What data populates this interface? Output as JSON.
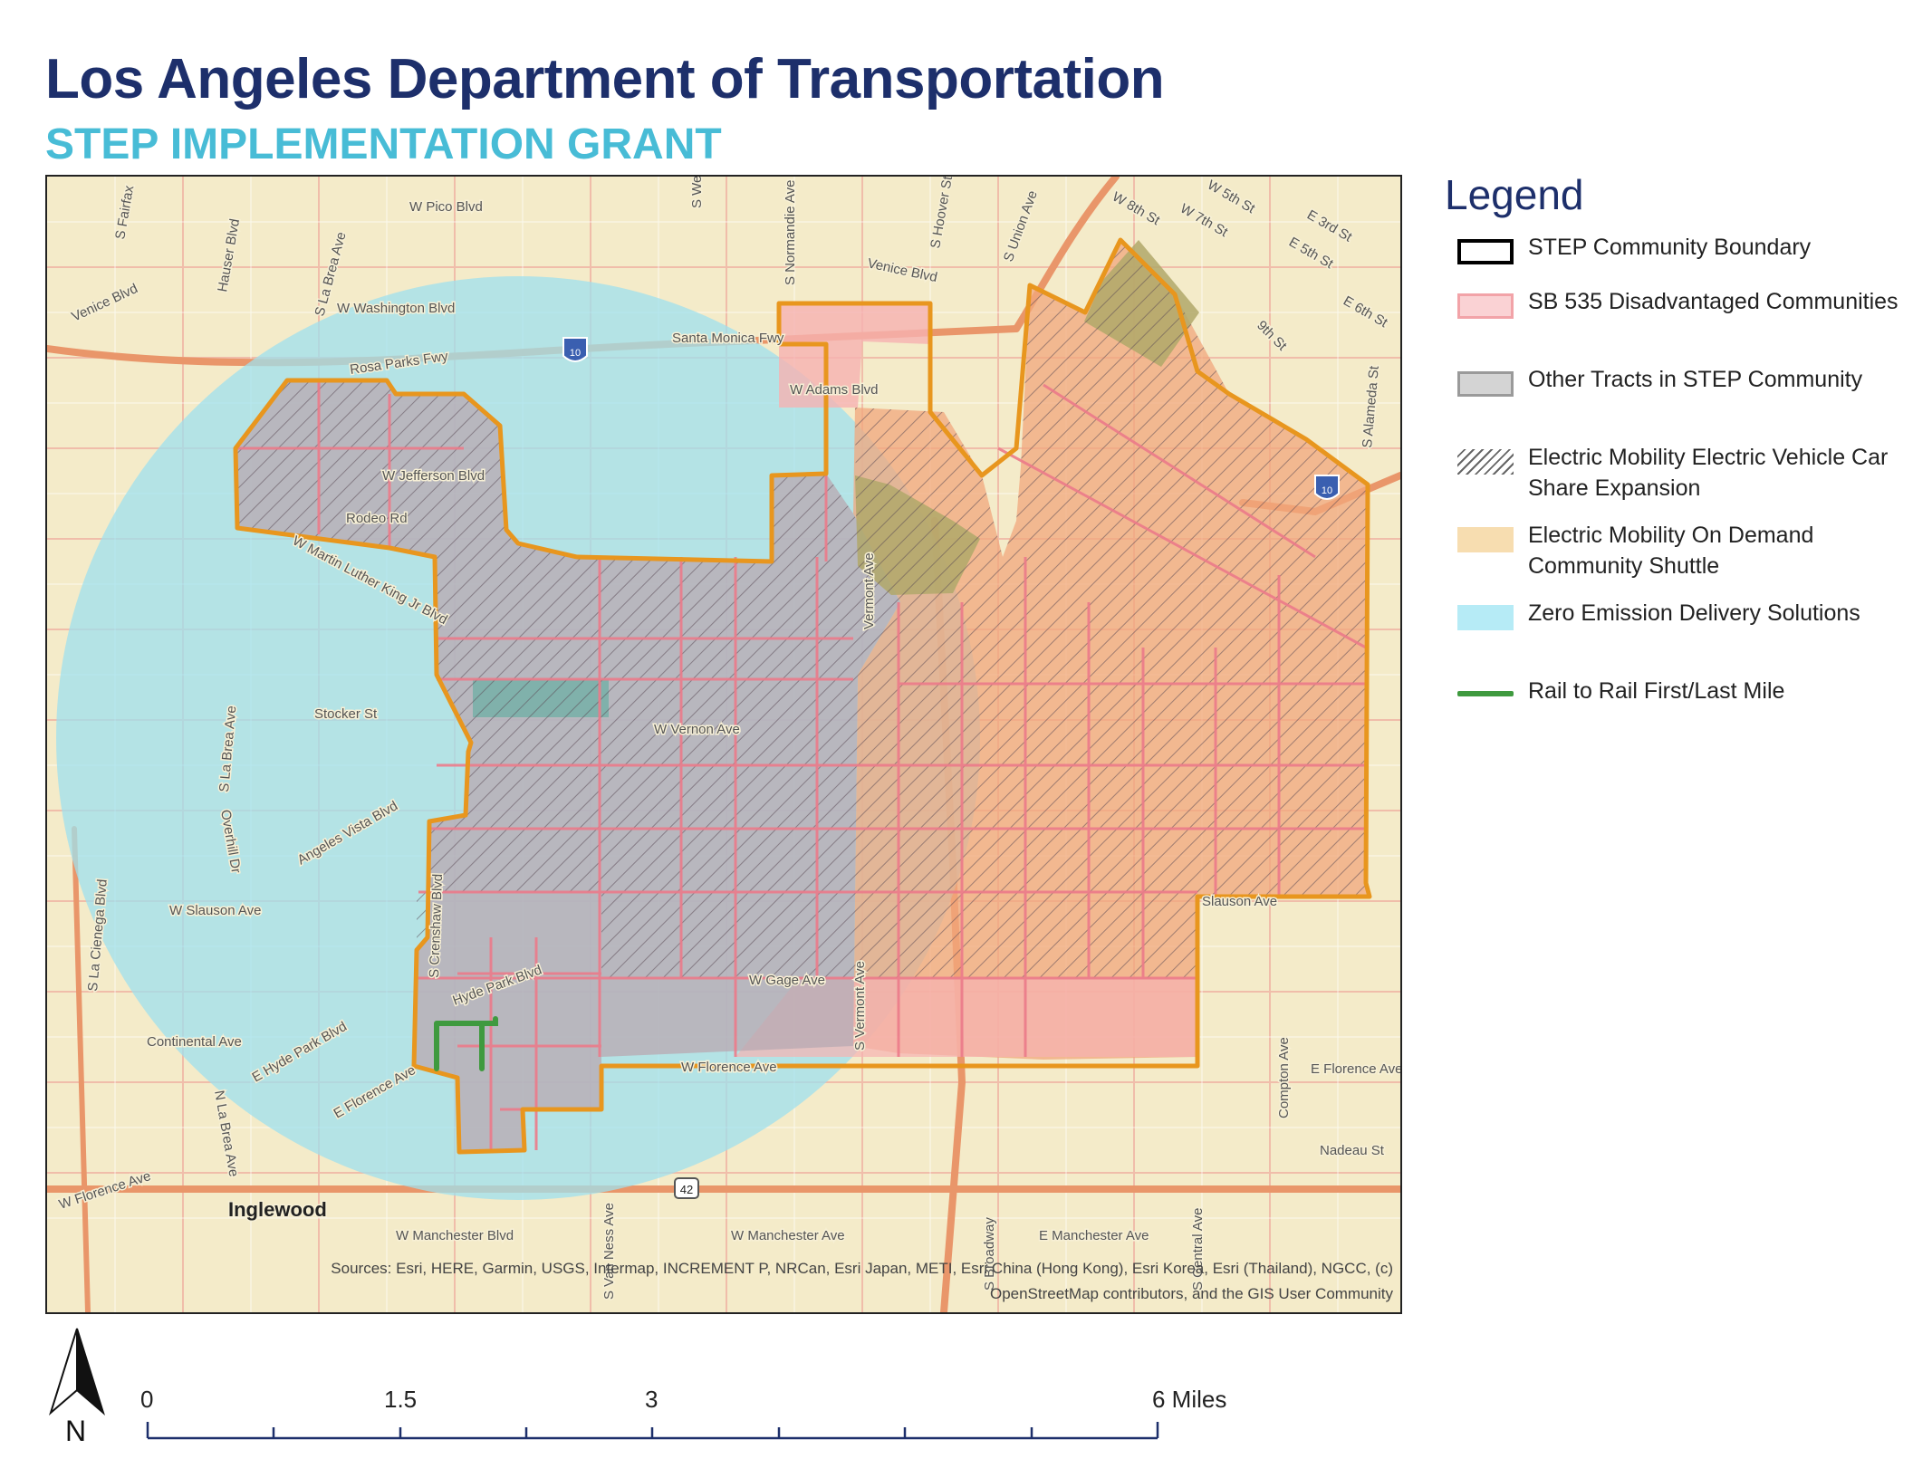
{
  "header": {
    "title": "Los Angeles Department of Transportation",
    "subtitle": "STEP IMPLEMENTATION GRANT"
  },
  "legend": {
    "title": "Legend",
    "items": [
      {
        "label": "STEP Community Boundary",
        "symbol": "boundary-outline"
      },
      {
        "label": "SB 535 Disadvantaged Communities",
        "symbol": "pink-fill"
      },
      {
        "label": "Other Tracts in STEP Community",
        "symbol": "gray-fill"
      },
      {
        "label": "Electric Mobility Electric Vehicle Car Share Expansion",
        "symbol": "diagonal-hatch"
      },
      {
        "label": "Electric Mobility On Demand Community Shuttle",
        "symbol": "orange-fill"
      },
      {
        "label": "Zero Emission Delivery Solutions",
        "symbol": "light-blue-fill"
      },
      {
        "label": "Rail to Rail First/Last Mile",
        "symbol": "green-line"
      }
    ]
  },
  "colors": {
    "title": "#1d2f6b",
    "subtitle": "#48bcd6",
    "basemap": "#f4ebc9",
    "boundary": "#e8961e",
    "sb535": "#f29aa0",
    "other_tracts": "#b8aab4",
    "shuttle": "#f2a77c",
    "zero_emission": "#9fe0ee",
    "rail": "#3f9a3f",
    "highway": "#e9966a"
  },
  "map": {
    "street_labels": [
      "S Fairfax",
      "W Pico Blvd",
      "Venice Blvd",
      "Hauser Blvd",
      "S La Brea Ave",
      "W Washington Blvd",
      "Santa Monica Fwy",
      "Rosa Parks Fwy",
      "W Adams Blvd",
      "W Jefferson Blvd",
      "Rodeo Rd",
      "W Martin Luther King Jr Blvd",
      "Stocker St",
      "S La Brea Ave",
      "Angeles Vista Blvd",
      "Overhill Dr",
      "S La Cienega Blvd",
      "W Slauson Ave",
      "Hyde Park Blvd",
      "Continental Ave",
      "E Hyde Park Blvd",
      "E Florence Ave",
      "N La Brea Ave",
      "W Florence Ave",
      "W Vernon Ave",
      "W Gage Ave",
      "W Florence Ave",
      "S Van Ness Ave",
      "S Vermont Ave",
      "S Normandie Ave",
      "S Western Ave",
      "S Hoover St",
      "S Union Ave",
      "W 8th St",
      "W 7th St",
      "W 5th St",
      "E 3rd St",
      "E 5th St",
      "E 6th St",
      "9th St",
      "S Alameda St",
      "Slauson Ave",
      "Compton Ave",
      "E Florence Ave",
      "Nadeau St",
      "S Central Ave",
      "S Broadway",
      "W Manchester Blvd",
      "W Manchester Ave",
      "E Manchester Ave",
      "S Crenshaw Blvd",
      "Vermont Ave",
      "Venice Blvd"
    ],
    "city_label": "Inglewood",
    "highway_shields": [
      "10",
      "10",
      "42"
    ],
    "attribution": [
      "Sources: Esri, HERE, Garmin, USGS, Intermap, INCREMENT P, NRCan, Esri Japan, METI, Esri China (Hong Kong), Esri Korea, Esri (Thailand), NGCC, (c)",
      "OpenStreetMap contributors, and the GIS User Community"
    ]
  },
  "scale_bar": {
    "labels": [
      "0",
      "1.5",
      "3",
      "6 Miles"
    ]
  },
  "north_arrow": {
    "label": "N"
  }
}
